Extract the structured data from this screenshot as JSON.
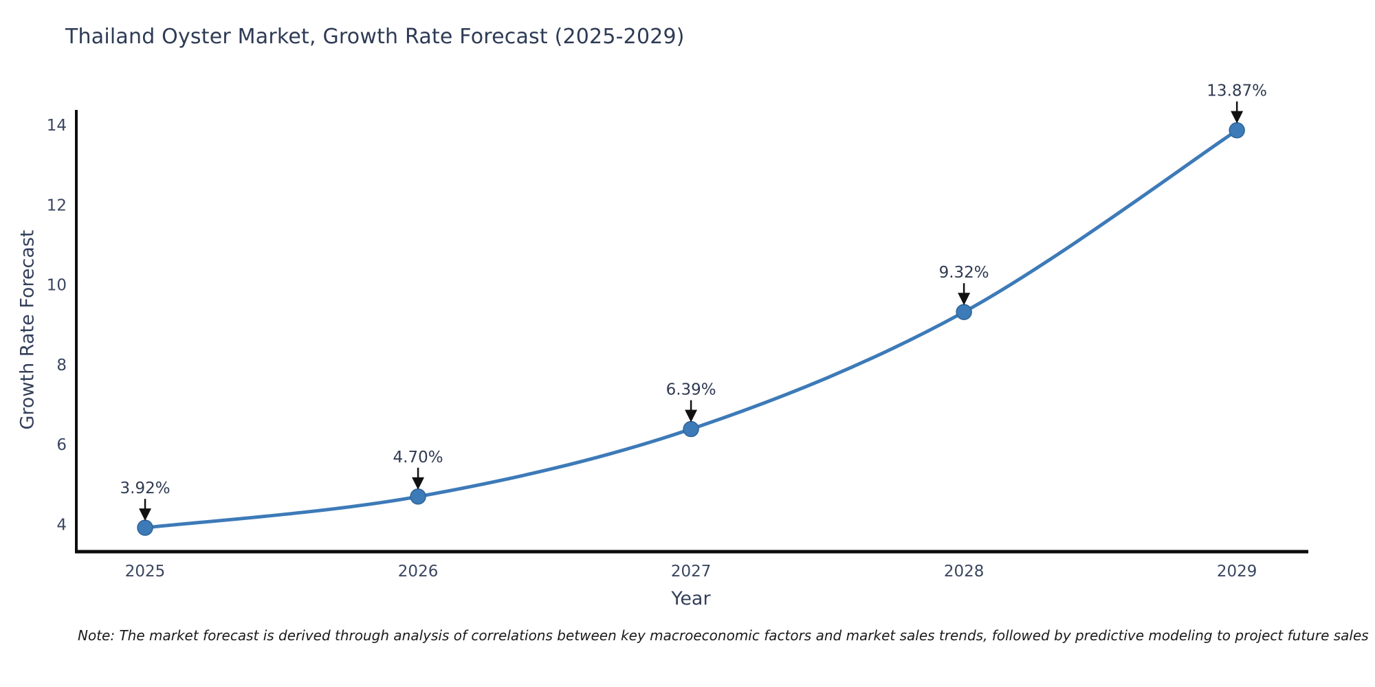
{
  "chart": {
    "title": "Thailand Oyster Market, Growth Rate Forecast (2025-2029)",
    "xlabel": "Year",
    "ylabel": "Growth Rate Forecast",
    "note": "Note: The market forecast is derived through analysis of correlations between key macroeconomic factors and market sales trends, followed by predictive modeling to project future sales"
  },
  "chart_data": {
    "type": "line",
    "title": "Thailand Oyster Market, Growth Rate Forecast (2025-2029)",
    "xlabel": "Year",
    "ylabel": "Growth Rate Forecast",
    "x": [
      2025,
      2026,
      2027,
      2028,
      2029
    ],
    "series": [
      {
        "name": "Growth Rate Forecast",
        "values": [
          3.92,
          4.7,
          6.39,
          9.32,
          13.87
        ]
      }
    ],
    "point_labels": [
      "3.92%",
      "4.70%",
      "6.39%",
      "9.32%",
      "13.87%"
    ],
    "xticks": [
      "2025",
      "2026",
      "2027",
      "2028",
      "2029"
    ],
    "yticks": [
      4,
      6,
      8,
      10,
      12,
      14
    ],
    "xlim": [
      2024.748,
      2029.254
    ],
    "ylim": [
      3.355,
      14.38
    ],
    "grid": false,
    "legend": "none",
    "annotations_have_arrows": true,
    "colors": {
      "line": "#3d7ab8",
      "marker": "#3d7ab8",
      "marker_edge": "#2f6398",
      "spine": "#0d0d0d",
      "tick_text": "#3a4660",
      "annotation_text": "#2f3a52",
      "arrow": "#111111"
    }
  }
}
